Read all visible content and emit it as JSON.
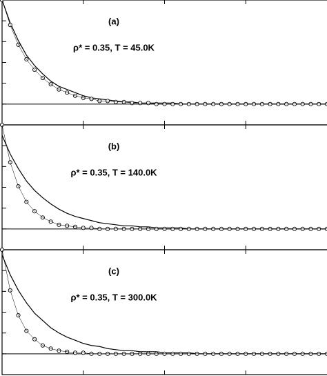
{
  "chart_data": [
    {
      "type": "line",
      "annotations": [
        "(a)",
        "ρ* = 0.35, T = 45.0K"
      ],
      "x": [
        0,
        0.1,
        0.2,
        0.3,
        0.4,
        0.5,
        0.6,
        0.7,
        0.8,
        0.9,
        1,
        1.1,
        1.2,
        1.3,
        1.4,
        1.5,
        1.6,
        1.7,
        1.8,
        1.9,
        2,
        2.1,
        2.2,
        2.3,
        2.4,
        2.5,
        2.6,
        2.7,
        2.8,
        2.9,
        3,
        3.1,
        3.2,
        3.3,
        3.4,
        3.5,
        3.6,
        3.7,
        3.8,
        3.9,
        4
      ],
      "series": [
        {
          "color": "#000000",
          "marker": "none",
          "values": [
            1,
            0.78,
            0.61,
            0.47,
            0.37,
            0.29,
            0.22,
            0.17,
            0.14,
            0.11,
            0.08,
            0.06,
            0.05,
            0.04,
            0.03,
            0.02,
            0.02,
            0.01,
            0.01,
            0.01,
            0.01,
            0.01,
            0,
            0,
            0,
            0,
            0,
            0,
            0,
            0,
            0,
            0,
            0,
            0,
            0,
            0,
            0,
            0,
            0,
            0,
            0
          ]
        },
        {
          "color": "#000000",
          "marker": "circle",
          "values": [
            1,
            0.76,
            0.57,
            0.43,
            0.33,
            0.25,
            0.19,
            0.14,
            0.11,
            0.08,
            0.06,
            0.05,
            0.03,
            0.03,
            0.02,
            0.02,
            0.01,
            0.01,
            0.01,
            0,
            0,
            0,
            0,
            0,
            0,
            0,
            0,
            0,
            0,
            0,
            0,
            0,
            0,
            0,
            0,
            0,
            0,
            0,
            0,
            0,
            0
          ]
        }
      ],
      "xlim": [
        0,
        4
      ],
      "xticks": [
        1,
        2,
        3
      ],
      "ylim": [
        -0.2,
        1.0
      ],
      "yticks": [
        0,
        0.2,
        0.4,
        0.6,
        0.8,
        1.0
      ]
    },
    {
      "type": "line",
      "annotations": [
        "(b)",
        "ρ* = 0.35, T = 140.0K"
      ],
      "x": [
        0,
        0.1,
        0.2,
        0.3,
        0.4,
        0.5,
        0.6,
        0.7,
        0.8,
        0.9,
        1,
        1.1,
        1.2,
        1.3,
        1.4,
        1.5,
        1.6,
        1.7,
        1.8,
        1.9,
        2,
        2.1,
        2.2,
        2.3,
        2.4,
        2.5,
        2.6,
        2.7,
        2.8,
        2.9,
        3,
        3.1,
        3.2,
        3.3,
        3.4,
        3.5,
        3.6,
        3.7,
        3.8,
        3.9,
        4
      ],
      "series": [
        {
          "color": "#000000",
          "marker": "none",
          "values": [
            0.9,
            0.72,
            0.58,
            0.46,
            0.37,
            0.3,
            0.24,
            0.19,
            0.15,
            0.12,
            0.1,
            0.08,
            0.06,
            0.05,
            0.04,
            0.03,
            0.03,
            0.02,
            0.02,
            0.01,
            0.01,
            0.01,
            0.01,
            0,
            0,
            0,
            0,
            0,
            0,
            0,
            0,
            0,
            0,
            0,
            0,
            0,
            0,
            0,
            0,
            0,
            0
          ]
        },
        {
          "color": "#000000",
          "marker": "circle",
          "values": [
            1,
            0.64,
            0.41,
            0.26,
            0.17,
            0.11,
            0.07,
            0.04,
            0.03,
            0.02,
            0.01,
            0.01,
            0,
            0,
            0,
            0,
            0,
            0,
            0,
            0,
            0,
            0,
            0,
            0,
            0,
            0,
            0,
            0,
            0,
            0,
            0,
            0,
            0,
            0,
            0,
            0,
            0,
            0,
            0,
            0,
            0
          ]
        }
      ],
      "xlim": [
        0,
        4
      ],
      "xticks": [
        1,
        2,
        3
      ],
      "ylim": [
        -0.2,
        1.0
      ],
      "yticks": [
        0,
        0.2,
        0.4,
        0.6,
        0.8,
        1.0
      ]
    },
    {
      "type": "line",
      "annotations": [
        "(c)",
        "ρ* = 0.35, T = 300.0K"
      ],
      "x": [
        0,
        0.1,
        0.2,
        0.3,
        0.4,
        0.5,
        0.6,
        0.7,
        0.8,
        0.9,
        1,
        1.1,
        1.2,
        1.3,
        1.4,
        1.5,
        1.6,
        1.7,
        1.8,
        1.9,
        2,
        2.1,
        2.2,
        2.3,
        2.4,
        2.5,
        2.6,
        2.7,
        2.8,
        2.9,
        3,
        3.1,
        3.2,
        3.3,
        3.4,
        3.5,
        3.6,
        3.7,
        3.8,
        3.9,
        4
      ],
      "series": [
        {
          "color": "#000000",
          "marker": "none",
          "values": [
            0.95,
            0.76,
            0.61,
            0.49,
            0.39,
            0.32,
            0.25,
            0.2,
            0.16,
            0.13,
            0.1,
            0.08,
            0.07,
            0.05,
            0.04,
            0.03,
            0.03,
            0.02,
            0.02,
            0.02,
            0.01,
            0.01,
            0.01,
            0.01,
            0,
            0,
            0,
            0,
            0,
            0,
            0,
            0,
            0,
            0,
            0,
            0,
            0,
            0,
            0,
            0,
            0
          ]
        },
        {
          "color": "#000000",
          "marker": "circle",
          "values": [
            1,
            0.61,
            0.37,
            0.22,
            0.14,
            0.08,
            0.05,
            0.03,
            0.02,
            0.01,
            0.01,
            0,
            0,
            0,
            0,
            0,
            0,
            0,
            0,
            0,
            0,
            0,
            0,
            0,
            0,
            0,
            0,
            0,
            0,
            0,
            0,
            0,
            0,
            0,
            0,
            0,
            0,
            0,
            0,
            0,
            0
          ]
        }
      ],
      "xlim": [
        0,
        4
      ],
      "xticks": [
        1,
        2,
        3
      ],
      "ylim": [
        -0.2,
        1.0
      ],
      "yticks": [
        0,
        0.2,
        0.4,
        0.6,
        0.8,
        1.0
      ]
    }
  ]
}
